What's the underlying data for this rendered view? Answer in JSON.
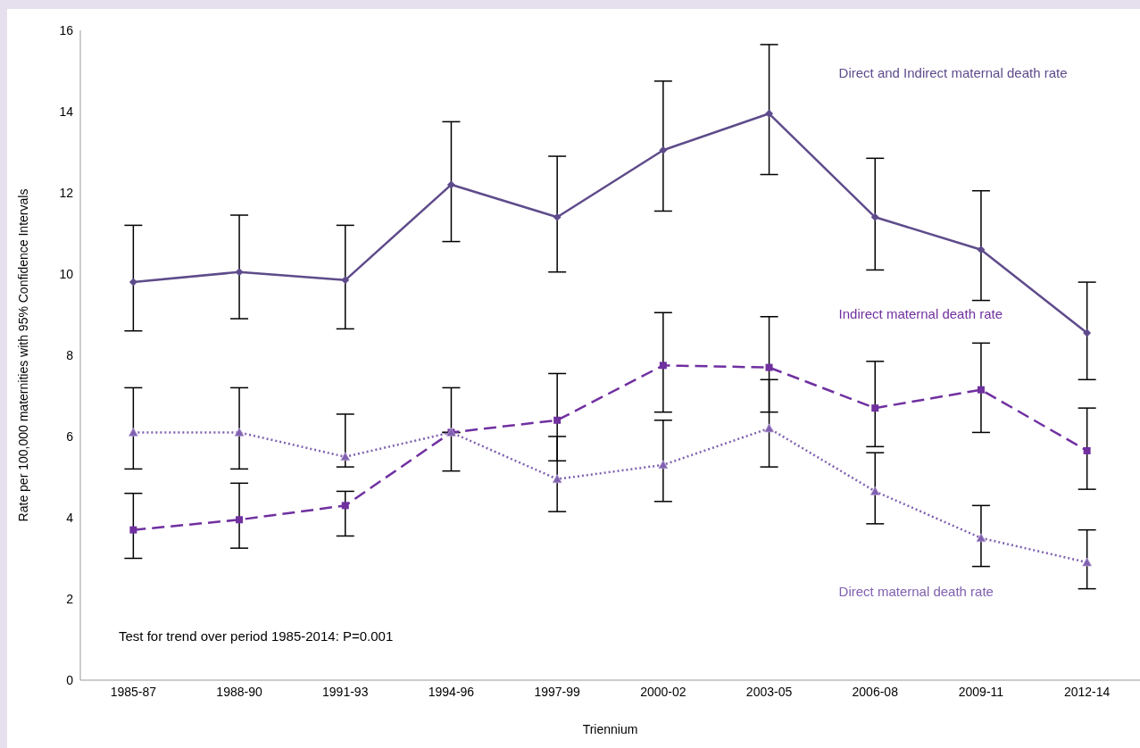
{
  "chart_data": {
    "type": "line",
    "xlabel": "Triennium",
    "ylabel": "Rate per 100,000 maternities with 95% Confidence Intervals",
    "categories": [
      "1985-87",
      "1988-90",
      "1991-93",
      "1994-96",
      "1997-99",
      "2000-02",
      "2003-05",
      "2006-08",
      "2009-11",
      "2012-14"
    ],
    "series": [
      {
        "name": "Direct and Indirect maternal death rate",
        "color": "#5e4b8b",
        "marker": "diamond",
        "line_style": "solid",
        "values": [
          9.8,
          10.05,
          9.85,
          12.2,
          11.4,
          13.05,
          13.95,
          11.4,
          10.6,
          8.55
        ],
        "errors": [
          [
            8.6,
            11.2
          ],
          [
            8.9,
            11.45
          ],
          [
            8.65,
            11.2
          ],
          [
            10.8,
            13.75
          ],
          [
            10.05,
            12.9
          ],
          [
            11.55,
            14.75
          ],
          [
            12.45,
            15.65
          ],
          [
            10.1,
            12.85
          ],
          [
            9.35,
            12.05
          ],
          [
            7.4,
            9.8
          ]
        ]
      },
      {
        "name": "Indirect maternal death rate",
        "color": "#7030a0",
        "marker": "square",
        "line_style": "dashed",
        "values": [
          3.7,
          3.95,
          4.3,
          6.1,
          6.4,
          7.75,
          7.7,
          6.7,
          7.15,
          5.65
        ],
        "errors": [
          [
            3.0,
            4.6
          ],
          [
            3.25,
            4.85
          ],
          [
            3.55,
            4.65
          ],
          null,
          [
            5.4,
            7.55
          ],
          [
            6.6,
            9.05
          ],
          [
            6.6,
            8.95
          ],
          [
            5.75,
            7.85
          ],
          [
            6.1,
            8.3
          ],
          [
            4.7,
            6.7
          ]
        ]
      },
      {
        "name": "Direct maternal death rate",
        "color": "#8060b0",
        "marker": "triangle",
        "line_style": "dotted",
        "values": [
          6.1,
          6.1,
          5.5,
          6.1,
          4.95,
          5.3,
          6.2,
          4.65,
          3.5,
          2.9
        ],
        "errors": [
          [
            5.2,
            7.2
          ],
          [
            5.2,
            7.2
          ],
          [
            5.25,
            6.55
          ],
          [
            5.15,
            7.2
          ],
          [
            4.15,
            6.0
          ],
          [
            4.4,
            6.4
          ],
          [
            5.25,
            7.4
          ],
          [
            3.85,
            5.6
          ],
          [
            2.8,
            4.3
          ],
          [
            2.25,
            3.7
          ]
        ]
      }
    ],
    "ylim": [
      0,
      16
    ],
    "yticks": [
      0,
      2,
      4,
      6,
      8,
      10,
      12,
      14,
      16
    ],
    "grid": false,
    "legend": false,
    "annotations": [
      "Test for trend over period 1985-2014: P=0.001"
    ]
  }
}
